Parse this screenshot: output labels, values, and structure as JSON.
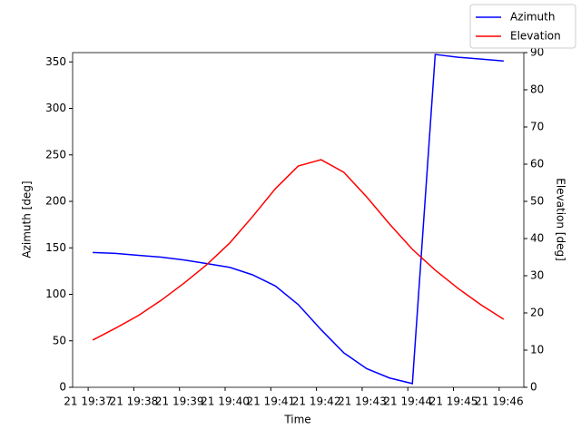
{
  "chart_data": {
    "type": "line",
    "xlabel": "Time",
    "ylabel": "Azimuth [deg]",
    "y2label": "Elevation [deg]",
    "x": [
      37.1,
      37.6,
      38.1,
      38.6,
      39.1,
      39.6,
      40.1,
      40.6,
      41.1,
      41.6,
      42.1,
      42.6,
      43.1,
      43.6,
      44.1,
      44.6,
      45.1,
      45.6,
      46.1
    ],
    "series": [
      {
        "name": "Azimuth",
        "color": "#0000ff",
        "axis": "y",
        "values": [
          145,
          144,
          142,
          140,
          137,
          133,
          129,
          121,
          109,
          89,
          62,
          37,
          20,
          10,
          4,
          358,
          355,
          353,
          351
        ]
      },
      {
        "name": "Elevation",
        "color": "#ff0000",
        "axis": "y2",
        "values": [
          12.7,
          15.9,
          19.3,
          23.4,
          28,
          33,
          38.8,
          45.9,
          53.4,
          59.5,
          61.2,
          57.8,
          51.2,
          43.9,
          37.1,
          31.5,
          26.6,
          22.2,
          18.3
        ]
      }
    ],
    "xlim": [
      36.66,
      46.54
    ],
    "xticks": [
      {
        "value": 37,
        "label": "21 19:37"
      },
      {
        "value": 38,
        "label": "21 19:38"
      },
      {
        "value": 39,
        "label": "21 19:39"
      },
      {
        "value": 40,
        "label": "21 19:40"
      },
      {
        "value": 41,
        "label": "21 19:41"
      },
      {
        "value": 42,
        "label": "21 19:42"
      },
      {
        "value": 43,
        "label": "21 19:43"
      },
      {
        "value": 44,
        "label": "21 19:44"
      },
      {
        "value": 45,
        "label": "21 19:45"
      },
      {
        "value": 46,
        "label": "21 19:46"
      }
    ],
    "ylim": [
      0,
      360
    ],
    "yticks": [
      0,
      50,
      100,
      150,
      200,
      250,
      300,
      350
    ],
    "y2lim": [
      0,
      90
    ],
    "y2ticks": [
      0,
      10,
      20,
      30,
      40,
      50,
      60,
      70,
      80,
      90
    ],
    "grid": false,
    "legend": "upper right"
  }
}
